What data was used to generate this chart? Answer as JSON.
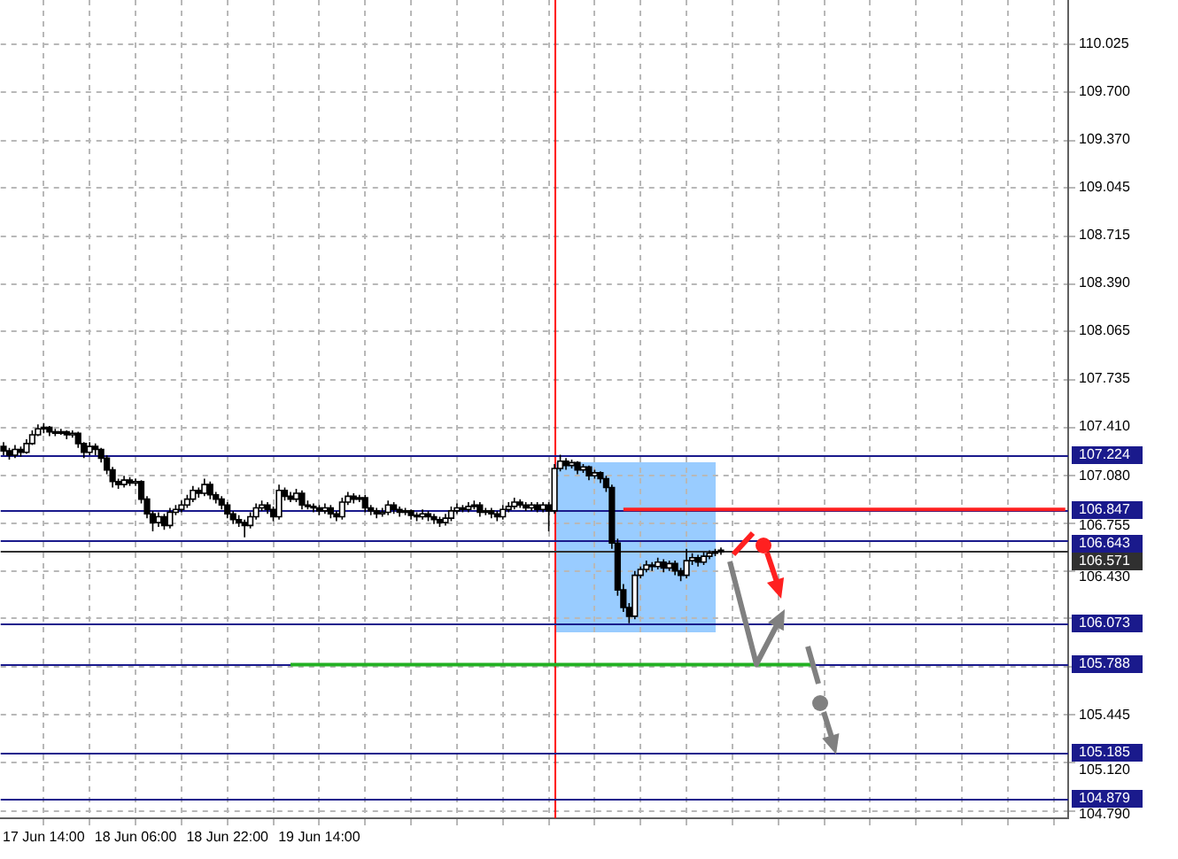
{
  "chart_data": {
    "type": "candlestick",
    "color": "#000000",
    "colors": [
      "#000000",
      "#000000",
      "#ffffff",
      "#000000",
      "#ffffff",
      "#ffffff",
      "#ffffff",
      "#ffffff",
      "#000000",
      "#000000",
      "#ffffff",
      "#000000",
      "#ffffff",
      "#000000",
      "#000000",
      "#ffffff",
      "#000000",
      "#000000",
      "#000000",
      "#000000",
      "#000000",
      "#ffffff",
      "#000000",
      "#ffffff",
      "#000000",
      "#000000",
      "#000000",
      "#ffffff",
      "#000000",
      "#ffffff",
      "#ffffff",
      "#ffffff",
      "#ffffff",
      "#ffffff",
      "#000000",
      "#ffffff",
      "#000000",
      "#000000",
      "#000000",
      "#000000",
      "#000000",
      "#000000",
      "#000000",
      "#ffffff",
      "#ffffff",
      "#ffffff",
      "#000000",
      "#000000",
      "#ffffff",
      "#000000",
      "#000000",
      "#ffffff",
      "#000000",
      "#000000",
      "#000000",
      "#000000",
      "#ffffff",
      "#000000",
      "#000000",
      "#ffffff",
      "#ffffff",
      "#000000",
      "#ffffff",
      "#000000",
      "#000000",
      "#000000",
      "#ffffff",
      "#ffffff",
      "#000000",
      "#000000",
      "#ffffff",
      "#000000",
      "#000000",
      "#ffffff",
      "#000000",
      "#000000",
      "#000000",
      "#ffffff",
      "#ffffff",
      "#ffffff",
      "#000000",
      "#ffffff",
      "#ffffff",
      "#000000",
      "#ffffff",
      "#000000",
      "#000000",
      "#ffffff",
      "#ffffff",
      "#ffffff",
      "#000000",
      "#000000",
      "#ffffff",
      "#000000",
      "#ffffff",
      "#000000",
      "#ffffff",
      "#ffffff",
      "#000000",
      "#ffffff",
      "#000000",
      "#ffffff",
      "#000000",
      "#ffffff",
      "#000000",
      "#000000",
      "#000000",
      "#000000",
      "#000000",
      "#000000",
      "#ffffff",
      "#ffffff",
      "#ffffff",
      "#000000",
      "#ffffff",
      "#000000",
      "#ffffff",
      "#000000",
      "#000000",
      "#ffffff",
      "#ffffff",
      "#000000",
      "#ffffff",
      "#ffffff",
      "#ffffff",
      "#ffffff",
      null,
      null,
      null,
      null,
      null,
      null,
      null,
      null,
      null,
      null,
      null,
      null,
      null,
      null,
      null,
      null,
      null,
      null,
      null,
      null,
      null,
      null,
      null,
      null,
      null,
      null,
      null,
      null,
      null,
      null,
      null,
      null,
      null,
      null,
      null,
      null,
      null,
      null,
      null,
      null,
      null,
      null,
      null,
      null,
      null,
      null,
      null,
      null,
      null,
      null,
      null,
      null,
      null,
      null,
      null,
      null,
      null,
      null,
      null,
      null
    ],
    "categories": [
      null,
      null,
      null,
      null,
      null,
      null,
      null,
      "17 Jun 14:00",
      null,
      null,
      null,
      null,
      null,
      null,
      null,
      null,
      null,
      null,
      null,
      null,
      null,
      null,
      null,
      "18 Jun 06:00",
      null,
      null,
      null,
      null,
      null,
      null,
      null,
      null,
      null,
      null,
      null,
      null,
      null,
      null,
      null,
      "18 Jun 22:00",
      null,
      null,
      null,
      null,
      null,
      null,
      null,
      null,
      null,
      null,
      null,
      null,
      null,
      null,
      null,
      "19 Jun 14:00",
      null,
      null,
      null,
      null,
      null,
      null,
      null,
      null,
      null,
      null,
      null,
      null,
      null,
      null,
      null,
      null,
      null,
      null,
      null,
      null,
      null,
      null,
      null,
      null,
      null,
      null,
      null,
      null,
      null,
      null,
      null,
      null,
      null,
      null,
      null,
      null,
      null,
      null,
      null,
      null,
      null,
      null,
      null,
      null,
      null,
      null,
      null,
      null,
      null,
      null,
      null,
      null,
      null,
      null,
      null,
      null,
      null,
      null,
      null,
      null,
      null,
      null,
      null,
      null,
      null,
      null,
      null,
      null,
      null,
      null,
      null,
      null,
      null,
      null,
      null,
      null,
      null,
      null,
      null,
      null,
      null,
      null,
      null,
      null,
      null,
      null,
      null,
      null,
      null,
      null,
      null,
      null,
      null,
      null,
      null,
      null,
      null,
      null,
      null,
      null,
      null,
      null,
      null,
      null,
      null,
      null,
      null,
      null,
      null,
      null,
      null,
      null,
      null,
      null,
      null,
      null,
      null,
      null,
      null,
      null,
      null,
      null,
      null,
      null,
      null,
      null,
      null,
      null,
      null,
      null
    ],
    "ohlc": [
      [
        107.28,
        107.31,
        107.22,
        107.25
      ],
      [
        107.25,
        107.27,
        107.19,
        107.22
      ],
      [
        107.22,
        107.29,
        107.2,
        107.26
      ],
      [
        107.26,
        107.28,
        107.21,
        107.24
      ],
      [
        107.24,
        107.33,
        107.23,
        107.3
      ],
      [
        107.3,
        107.39,
        107.29,
        107.36
      ],
      [
        107.36,
        107.43,
        107.35,
        107.4
      ],
      [
        107.4,
        107.44,
        107.37,
        107.41
      ],
      [
        107.41,
        107.42,
        107.35,
        107.38
      ],
      [
        107.38,
        107.4,
        107.35,
        107.37
      ],
      [
        107.37,
        107.4,
        107.36,
        107.38
      ],
      [
        107.38,
        107.39,
        107.33,
        107.36
      ],
      [
        107.36,
        107.39,
        107.34,
        107.37
      ],
      [
        107.37,
        107.38,
        107.27,
        107.3
      ],
      [
        107.3,
        107.31,
        107.2,
        107.24
      ],
      [
        107.24,
        107.31,
        107.22,
        107.28
      ],
      [
        107.28,
        107.3,
        107.22,
        107.26
      ],
      [
        107.26,
        107.27,
        107.17,
        107.2
      ],
      [
        107.2,
        107.22,
        107.09,
        107.12
      ],
      [
        107.12,
        107.14,
        107,
        107.04
      ],
      [
        107.04,
        107.06,
        106.99,
        107.02
      ],
      [
        107.02,
        107.08,
        107,
        107.05
      ],
      [
        107.05,
        107.07,
        107.01,
        107.03
      ],
      [
        107.03,
        107.06,
        107.01,
        107.04
      ],
      [
        107.04,
        107.05,
        106.89,
        106.92
      ],
      [
        106.92,
        106.94,
        106.79,
        106.82
      ],
      [
        106.82,
        106.84,
        106.7,
        106.76
      ],
      [
        106.76,
        106.83,
        106.73,
        106.8
      ],
      [
        106.8,
        106.82,
        106.71,
        106.74
      ],
      [
        106.74,
        106.86,
        106.72,
        106.83
      ],
      [
        106.83,
        106.88,
        106.81,
        106.85
      ],
      [
        106.85,
        106.91,
        106.83,
        106.88
      ],
      [
        106.88,
        106.95,
        106.86,
        106.92
      ],
      [
        106.92,
        107.01,
        106.9,
        106.98
      ],
      [
        106.98,
        107,
        106.93,
        106.96
      ],
      [
        106.96,
        107.06,
        106.94,
        107.02
      ],
      [
        107.02,
        107.04,
        106.92,
        106.95
      ],
      [
        106.95,
        106.97,
        106.89,
        106.92
      ],
      [
        106.92,
        106.94,
        106.85,
        106.88
      ],
      [
        106.88,
        106.9,
        106.79,
        106.82
      ],
      [
        106.82,
        106.84,
        106.75,
        106.78
      ],
      [
        106.78,
        106.81,
        106.73,
        106.76
      ],
      [
        106.76,
        106.78,
        106.66,
        106.74
      ],
      [
        106.74,
        106.83,
        106.72,
        106.8
      ],
      [
        106.8,
        106.89,
        106.78,
        106.86
      ],
      [
        106.86,
        106.91,
        106.84,
        106.88
      ],
      [
        106.88,
        106.9,
        106.82,
        106.85
      ],
      [
        106.85,
        106.87,
        106.77,
        106.8
      ],
      [
        106.8,
        107.02,
        106.78,
        106.98
      ],
      [
        106.98,
        107,
        106.91,
        106.94
      ],
      [
        106.94,
        106.97,
        106.9,
        106.92
      ],
      [
        106.92,
        106.99,
        106.9,
        106.96
      ],
      [
        106.96,
        106.98,
        106.85,
        106.88
      ],
      [
        106.88,
        106.91,
        106.85,
        106.87
      ],
      [
        106.87,
        106.89,
        106.83,
        106.86
      ],
      [
        106.86,
        106.88,
        106.81,
        106.84
      ],
      [
        106.84,
        106.89,
        106.82,
        106.86
      ],
      [
        106.86,
        106.88,
        106.79,
        106.82
      ],
      [
        106.82,
        106.84,
        106.77,
        106.8
      ],
      [
        106.8,
        106.93,
        106.78,
        106.9
      ],
      [
        106.9,
        106.97,
        106.88,
        106.94
      ],
      [
        106.94,
        106.96,
        106.89,
        106.92
      ],
      [
        106.92,
        106.95,
        106.9,
        106.93
      ],
      [
        106.93,
        106.95,
        106.83,
        106.86
      ],
      [
        106.86,
        106.88,
        106.81,
        106.84
      ],
      [
        106.84,
        106.86,
        106.79,
        106.82
      ],
      [
        106.82,
        106.86,
        106.8,
        106.83
      ],
      [
        106.83,
        106.91,
        106.81,
        106.88
      ],
      [
        106.88,
        106.9,
        106.82,
        106.85
      ],
      [
        106.85,
        106.87,
        106.8,
        106.83
      ],
      [
        106.83,
        106.86,
        106.81,
        106.84
      ],
      [
        106.84,
        106.85,
        106.78,
        106.81
      ],
      [
        106.81,
        106.83,
        106.77,
        106.8
      ],
      [
        106.8,
        106.85,
        106.78,
        106.82
      ],
      [
        106.82,
        106.84,
        106.77,
        106.8
      ],
      [
        106.8,
        106.82,
        106.75,
        106.78
      ],
      [
        106.78,
        106.8,
        106.73,
        106.76
      ],
      [
        106.76,
        106.82,
        106.74,
        106.79
      ],
      [
        106.79,
        106.87,
        106.77,
        106.84
      ],
      [
        106.84,
        106.89,
        106.82,
        106.86
      ],
      [
        106.86,
        106.88,
        106.83,
        106.85
      ],
      [
        106.85,
        106.9,
        106.83,
        106.87
      ],
      [
        106.87,
        106.91,
        106.85,
        106.88
      ],
      [
        106.88,
        106.9,
        106.8,
        106.83
      ],
      [
        106.83,
        106.86,
        106.81,
        106.84
      ],
      [
        106.84,
        106.86,
        106.79,
        106.82
      ],
      [
        106.82,
        106.84,
        106.77,
        106.8
      ],
      [
        106.8,
        106.88,
        106.78,
        106.85
      ],
      [
        106.85,
        106.9,
        106.83,
        106.87
      ],
      [
        106.87,
        106.93,
        106.85,
        106.9
      ],
      [
        106.9,
        106.92,
        106.86,
        106.88
      ],
      [
        106.88,
        106.9,
        106.84,
        106.86
      ],
      [
        106.86,
        106.9,
        106.84,
        106.88
      ],
      [
        106.88,
        106.9,
        106.83,
        106.85
      ],
      [
        106.85,
        106.9,
        106.83,
        106.88
      ],
      [
        106.88,
        106.9,
        106.7,
        106.84
      ],
      [
        106.84,
        107.16,
        106.82,
        107.13
      ],
      [
        107.13,
        107.224,
        107.11,
        107.18
      ],
      [
        107.18,
        107.2,
        107.12,
        107.15
      ],
      [
        107.15,
        107.19,
        107.13,
        107.17
      ],
      [
        107.17,
        107.18,
        107.09,
        107.12
      ],
      [
        107.12,
        107.16,
        107.1,
        107.14
      ],
      [
        107.14,
        107.15,
        107.05,
        107.08
      ],
      [
        107.08,
        107.12,
        107.06,
        107.1
      ],
      [
        107.1,
        107.11,
        107.03,
        107.06
      ],
      [
        107.06,
        107.08,
        106.97,
        107
      ],
      [
        107,
        107.02,
        106.58,
        106.62
      ],
      [
        106.62,
        106.65,
        106.26,
        106.3
      ],
      [
        106.3,
        106.34,
        106.15,
        106.18
      ],
      [
        106.18,
        106.21,
        106.073,
        106.12
      ],
      [
        106.12,
        106.43,
        106.1,
        106.4
      ],
      [
        106.4,
        106.46,
        106.38,
        106.44
      ],
      [
        106.44,
        106.5,
        106.42,
        106.47
      ],
      [
        106.47,
        106.49,
        106.43,
        106.46
      ],
      [
        106.46,
        106.52,
        106.44,
        106.49
      ],
      [
        106.49,
        106.51,
        106.42,
        106.45
      ],
      [
        106.45,
        106.5,
        106.43,
        106.48
      ],
      [
        106.48,
        106.5,
        106.4,
        106.43
      ],
      [
        106.43,
        106.45,
        106.36,
        106.4
      ],
      [
        106.4,
        106.58,
        106.38,
        106.5
      ],
      [
        106.5,
        106.55,
        106.47,
        106.52
      ],
      [
        106.52,
        106.54,
        106.46,
        106.49
      ],
      [
        106.49,
        106.56,
        106.47,
        106.53
      ],
      [
        106.53,
        106.57,
        106.51,
        106.55
      ],
      [
        106.55,
        106.58,
        106.53,
        106.56
      ],
      [
        106.56,
        106.59,
        106.54,
        106.571
      ],
      null,
      null,
      null,
      null,
      null,
      null,
      null,
      null,
      null,
      null,
      null,
      null,
      null,
      null,
      null,
      null,
      null,
      null,
      null,
      null,
      null,
      null,
      null,
      null,
      null,
      null,
      null,
      null,
      null,
      null,
      null,
      null,
      null,
      null,
      null,
      null,
      null,
      null,
      null,
      null,
      null,
      null,
      null,
      null,
      null,
      null,
      null,
      null,
      null,
      null,
      null,
      null,
      null,
      null,
      null,
      null,
      null,
      null,
      null,
      null
    ],
    "series": [
      {
        "type": "line",
        "color": "#ff2020",
        "values": [
          null,
          null,
          null,
          null,
          null,
          null,
          null,
          null,
          null,
          null,
          null,
          null,
          null,
          null,
          null,
          null,
          null,
          null,
          null,
          null,
          null,
          null,
          null,
          null,
          null,
          null,
          null,
          null,
          null,
          null,
          null,
          null,
          null,
          null,
          null,
          null,
          null,
          null,
          null,
          null,
          null,
          null,
          null,
          null,
          null,
          null,
          null,
          null,
          null,
          null,
          null,
          null,
          null,
          null,
          null,
          null,
          null,
          null,
          null,
          null,
          null,
          null,
          null,
          null,
          null,
          null,
          null,
          null,
          null,
          null,
          null,
          null,
          null,
          null,
          null,
          null,
          null,
          null,
          null,
          null,
          null,
          null,
          null,
          null,
          null,
          null,
          null,
          null,
          null,
          null,
          null,
          null,
          null,
          null,
          null,
          null,
          null,
          null,
          null,
          null,
          null,
          null,
          null,
          null,
          null,
          null,
          null,
          null,
          106.85,
          null,
          null,
          null,
          null,
          null,
          null,
          null,
          null,
          null,
          null,
          null,
          null,
          null,
          null,
          null,
          null,
          null,
          null,
          null,
          null,
          null,
          null,
          null,
          null,
          null,
          null,
          null,
          null,
          null,
          null,
          null,
          null,
          null,
          null,
          null,
          null,
          null,
          null,
          null,
          null,
          null,
          null,
          null,
          null,
          null,
          null,
          null,
          null,
          null,
          null,
          null,
          null,
          null,
          null,
          null,
          null,
          null,
          null,
          null,
          null,
          null,
          null,
          null,
          null,
          null,
          null,
          null,
          null,
          null,
          null,
          null,
          null,
          null,
          null,
          null,
          null,
          106.85
        ]
      },
      {
        "type": "line",
        "color": "#22b022",
        "values": [
          null,
          null,
          null,
          null,
          null,
          null,
          null,
          null,
          null,
          null,
          null,
          null,
          null,
          null,
          null,
          null,
          null,
          null,
          null,
          null,
          null,
          null,
          null,
          null,
          null,
          null,
          null,
          null,
          null,
          null,
          null,
          null,
          null,
          null,
          null,
          null,
          null,
          null,
          null,
          null,
          null,
          null,
          null,
          null,
          null,
          null,
          null,
          null,
          null,
          null,
          105.79,
          null,
          null,
          null,
          null,
          null,
          null,
          null,
          null,
          null,
          null,
          null,
          null,
          null,
          null,
          null,
          null,
          null,
          null,
          null,
          null,
          null,
          null,
          null,
          null,
          null,
          null,
          null,
          null,
          null,
          null,
          null,
          null,
          null,
          null,
          null,
          null,
          null,
          null,
          null,
          null,
          null,
          null,
          null,
          null,
          null,
          null,
          null,
          null,
          null,
          null,
          null,
          null,
          null,
          null,
          null,
          null,
          null,
          null,
          null,
          null,
          null,
          null,
          null,
          null,
          null,
          null,
          null,
          null,
          null,
          null,
          null,
          null,
          null,
          null,
          null,
          null,
          null,
          null,
          null,
          null,
          null,
          null,
          null,
          null,
          null,
          null,
          null,
          null,
          null,
          null,
          105.79,
          null,
          null,
          null,
          null,
          null,
          null,
          null,
          null,
          null,
          null,
          null,
          null,
          null,
          null,
          null,
          null,
          null,
          null,
          null,
          null,
          null,
          null,
          null,
          null,
          null,
          null,
          null,
          null,
          null,
          null,
          null,
          null,
          null,
          null,
          null,
          null,
          null,
          null,
          null,
          null,
          null,
          null,
          null,
          null
        ]
      }
    ],
    "ylim": [
      104.74,
      110.33
    ],
    "yticks": [
      {
        "value": 110.025,
        "label": "110.025"
      },
      {
        "value": 109.7,
        "label": "109.700"
      },
      {
        "value": 109.37,
        "label": "109.370"
      },
      {
        "value": 109.045,
        "label": "109.045"
      },
      {
        "value": 108.715,
        "label": "108.715"
      },
      {
        "value": 108.39,
        "label": "108.390"
      },
      {
        "value": 108.065,
        "label": "108.065"
      },
      {
        "value": 107.735,
        "label": "107.735"
      },
      {
        "value": 107.41,
        "label": "107.410"
      },
      {
        "value": 107.08,
        "label": "107.080"
      },
      {
        "value": 106.755,
        "label": "106.755"
      },
      {
        "value": 106.43,
        "label": "106.430"
      },
      {
        "value": 106.105,
        "label": null
      },
      {
        "value": 105.775,
        "label": null
      },
      {
        "value": 105.445,
        "label": "105.445"
      },
      {
        "value": 105.12,
        "label": "105.120"
      },
      {
        "value": 104.79,
        "label": "104.790"
      }
    ],
    "ref_lines": [
      {
        "axis": "y",
        "value": 107.224,
        "label": "107.224",
        "color": "#1a1a8c"
      },
      {
        "axis": "y",
        "value": 106.847,
        "label": "106.847",
        "color": "#1a1a8c"
      },
      {
        "axis": "y",
        "value": 106.643,
        "label": "106.643",
        "color": "#1a1a8c"
      },
      {
        "axis": "y",
        "value": 106.571,
        "label": "106.571",
        "color": "#303030"
      },
      {
        "axis": "y",
        "value": 106.073,
        "label": "106.073",
        "color": "#1a1a8c"
      },
      {
        "axis": "y",
        "value": 105.788,
        "label": "105.788",
        "color": "#1a1a8c"
      },
      {
        "axis": "y",
        "value": 105.185,
        "label": "105.185",
        "color": "#1a1a8c"
      },
      {
        "axis": "y",
        "value": 104.879,
        "label": "104.879",
        "color": "#1a1a8c"
      }
    ],
    "grid": true,
    "legend": false
  }
}
